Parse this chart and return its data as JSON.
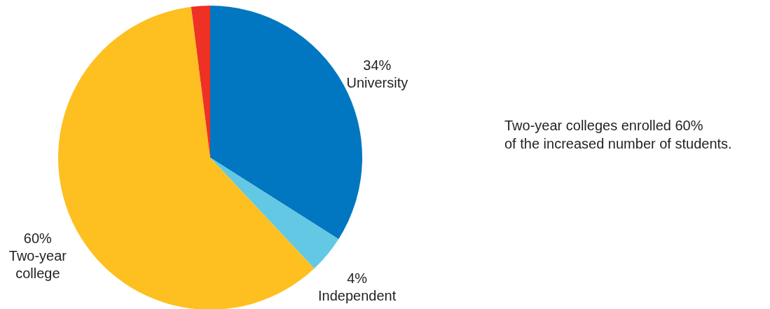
{
  "chart_data": {
    "type": "pie",
    "categories": [
      "University",
      "Independent",
      "Two-year college",
      null
    ],
    "values": [
      34,
      4,
      60,
      2
    ],
    "value_labels": [
      "34%",
      "4%",
      "60%",
      null
    ],
    "colors": [
      "#0077c0",
      "#62c8e3",
      "#fdc020",
      "#ee3124"
    ],
    "annotations": [
      "Two-year colleges enrolled 60%\nof the increased number of students."
    ]
  }
}
